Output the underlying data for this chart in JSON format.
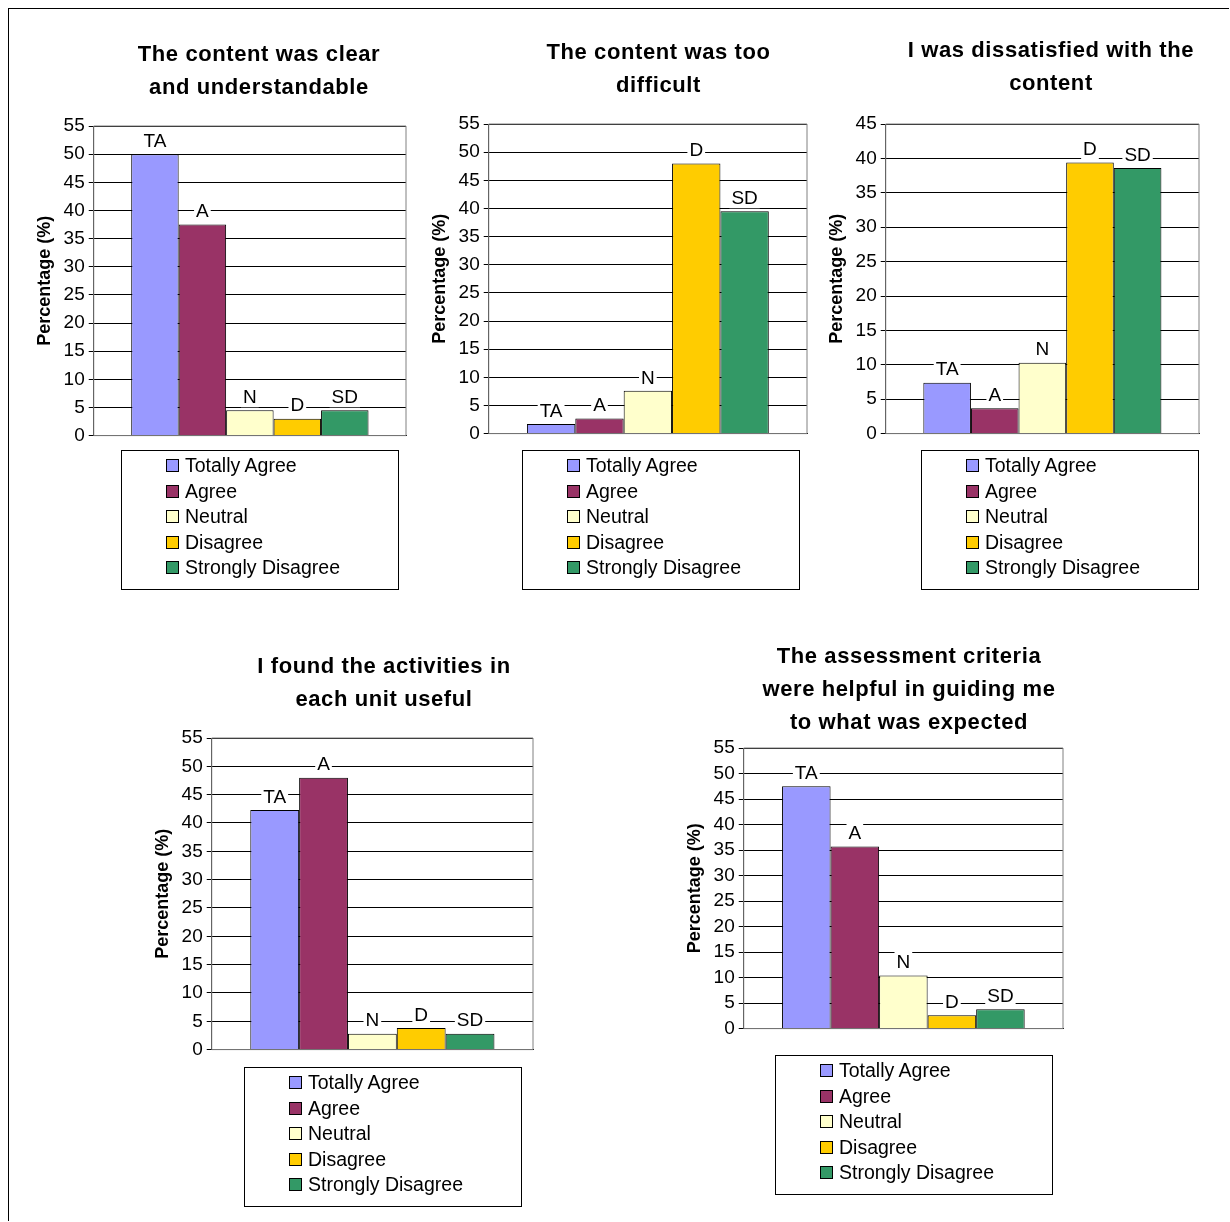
{
  "chart_data": [
    {
      "type": "bar",
      "title": "The content was clear and understandable",
      "ylabel": "Percentage (%)",
      "categories": [
        null
      ],
      "ylim": [
        0,
        55
      ],
      "yticks": [
        0,
        5,
        10,
        15,
        20,
        25,
        30,
        35,
        40,
        45,
        50,
        55
      ],
      "grid": "y",
      "legend": "bottom",
      "series": [
        {
          "name": "Totally Agree",
          "color": "#9999ff",
          "values": [
            50
          ],
          "value_labels": [
            "TA"
          ]
        },
        {
          "name": "Agree",
          "color": "#993366",
          "values": [
            37.5
          ],
          "value_labels": [
            "A"
          ]
        },
        {
          "name": "Neutral",
          "color": "#ffffcc",
          "values": [
            4.5
          ],
          "value_labels": [
            "N"
          ]
        },
        {
          "name": "Disagree",
          "color": "#ffcc00",
          "values": [
            3
          ],
          "value_labels": [
            "D"
          ]
        },
        {
          "name": "Strongly Disagree",
          "color": "#339966",
          "values": [
            4.5
          ],
          "value_labels": [
            "SD"
          ]
        }
      ]
    },
    {
      "type": "bar",
      "title": "The content was too difficult",
      "ylabel": "Percentage (%)",
      "categories": [
        null
      ],
      "ylim": [
        0,
        55
      ],
      "yticks": [
        0,
        5,
        10,
        15,
        20,
        25,
        30,
        35,
        40,
        45,
        50,
        55
      ],
      "grid": "y",
      "legend": "bottom",
      "series": [
        {
          "name": "Totally Agree",
          "color": "#9999ff",
          "values": [
            1.7
          ],
          "value_labels": [
            "TA"
          ]
        },
        {
          "name": "Agree",
          "color": "#993366",
          "values": [
            2.7
          ],
          "value_labels": [
            "A"
          ]
        },
        {
          "name": "Neutral",
          "color": "#ffffcc",
          "values": [
            7.6
          ],
          "value_labels": [
            "N"
          ]
        },
        {
          "name": "Disagree",
          "color": "#ffcc00",
          "values": [
            48
          ],
          "value_labels": [
            "D"
          ]
        },
        {
          "name": "Strongly Disagree",
          "color": "#339966",
          "values": [
            39.5
          ],
          "value_labels": [
            "SD"
          ]
        }
      ]
    },
    {
      "type": "bar",
      "title": "I was dissatisfied with the content",
      "ylabel": "Percentage (%)",
      "categories": [
        null
      ],
      "ylim": [
        0,
        45
      ],
      "yticks": [
        0,
        5,
        10,
        15,
        20,
        25,
        30,
        35,
        40,
        45
      ],
      "grid": "y",
      "legend": "bottom",
      "series": [
        {
          "name": "Totally Agree",
          "color": "#9999ff",
          "values": [
            7.4
          ],
          "value_labels": [
            "TA"
          ]
        },
        {
          "name": "Agree",
          "color": "#993366",
          "values": [
            3.7
          ],
          "value_labels": [
            "A"
          ]
        },
        {
          "name": "Neutral",
          "color": "#ffffcc",
          "values": [
            10.3
          ],
          "value_labels": [
            "N"
          ]
        },
        {
          "name": "Disagree",
          "color": "#ffcc00",
          "values": [
            39.4
          ],
          "value_labels": [
            "D"
          ]
        },
        {
          "name": "Strongly Disagree",
          "color": "#339966",
          "values": [
            38.6
          ],
          "value_labels": [
            "SD"
          ]
        }
      ]
    },
    {
      "type": "bar",
      "title": "I found the activities in each unit useful",
      "ylabel": "Percentage (%)",
      "categories": [
        null
      ],
      "ylim": [
        0,
        55
      ],
      "yticks": [
        0,
        5,
        10,
        15,
        20,
        25,
        30,
        35,
        40,
        45,
        50,
        55
      ],
      "grid": "y",
      "legend": "bottom",
      "series": [
        {
          "name": "Totally Agree",
          "color": "#9999ff",
          "values": [
            42.3
          ],
          "value_labels": [
            "TA"
          ]
        },
        {
          "name": "Agree",
          "color": "#993366",
          "values": [
            48
          ],
          "value_labels": [
            "A"
          ]
        },
        {
          "name": "Neutral",
          "color": "#ffffcc",
          "values": [
            2.8
          ],
          "value_labels": [
            "N"
          ]
        },
        {
          "name": "Disagree",
          "color": "#ffcc00",
          "values": [
            3.8
          ],
          "value_labels": [
            "D"
          ]
        },
        {
          "name": "Strongly Disagree",
          "color": "#339966",
          "values": [
            2.8
          ],
          "value_labels": [
            "SD"
          ]
        }
      ]
    },
    {
      "type": "bar",
      "title": "The assessment criteria were helpful in guiding me to what was expected",
      "ylabel": "Percentage (%)",
      "categories": [
        null
      ],
      "ylim": [
        0,
        55
      ],
      "yticks": [
        0,
        5,
        10,
        15,
        20,
        25,
        30,
        35,
        40,
        45,
        50,
        55
      ],
      "grid": "y",
      "legend": "bottom",
      "series": [
        {
          "name": "Totally Agree",
          "color": "#9999ff",
          "values": [
            47.5
          ],
          "value_labels": [
            "TA"
          ]
        },
        {
          "name": "Agree",
          "color": "#993366",
          "values": [
            35.7
          ],
          "value_labels": [
            "A"
          ]
        },
        {
          "name": "Neutral",
          "color": "#ffffcc",
          "values": [
            10.4
          ],
          "value_labels": [
            "N"
          ]
        },
        {
          "name": "Disagree",
          "color": "#ffcc00",
          "values": [
            2.6
          ],
          "value_labels": [
            "D"
          ]
        },
        {
          "name": "Strongly Disagree",
          "color": "#339966",
          "values": [
            3.8
          ],
          "value_labels": [
            "SD"
          ]
        }
      ]
    }
  ]
}
